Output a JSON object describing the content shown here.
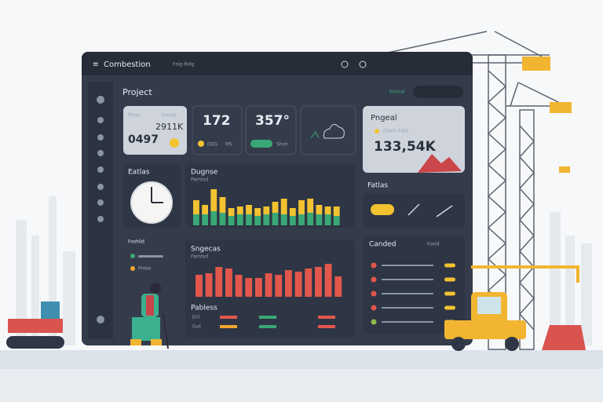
{
  "header": {
    "title": "Combestion",
    "links": "Fsig Ibdg"
  },
  "project": {
    "title": "Project",
    "status": "Eoosal"
  },
  "kpis": [
    {
      "label": "Pfoss",
      "tag": "Gwdal",
      "value": "2911K",
      "sub": "0497"
    },
    {
      "value": "172",
      "tags": [
        "DEG",
        "MS"
      ]
    },
    {
      "value": "357°",
      "tag": "Shon"
    }
  ],
  "highlight": {
    "title": "Pngeal",
    "sub": "Odels FIAS",
    "value": "133,54K"
  },
  "clock": {
    "title": "Eatlas"
  },
  "legend": [
    "Foshlid",
    "Prese"
  ],
  "chart1": {
    "title": "Dugnse",
    "subtitle": "Pamtsd",
    "series": [
      {
        "color": "#3aa776",
        "values": [
          14,
          14,
          18,
          16,
          12,
          14,
          14,
          12,
          14,
          16,
          14,
          12,
          14,
          16,
          14,
          14,
          12
        ]
      },
      {
        "color": "#f2c230",
        "values": [
          18,
          12,
          28,
          20,
          10,
          10,
          12,
          10,
          10,
          14,
          20,
          10,
          18,
          18,
          12,
          10,
          12
        ]
      }
    ]
  },
  "chart2": {
    "title": "Sngecas",
    "subtitle": "Pamtsd",
    "color": "#e2574c",
    "values": [
      28,
      30,
      38,
      36,
      28,
      24,
      24,
      30,
      28,
      34,
      32,
      36,
      38,
      42,
      26
    ],
    "footer": {
      "title": "Pabless",
      "items": [
        "Enl",
        "Gut"
      ]
    }
  },
  "fatlas": {
    "title": "Fatlas"
  },
  "list": {
    "title": "Canded",
    "tag": "Fosid",
    "rows": [
      {
        "color": "#e2574c"
      },
      {
        "color": "#e2574c"
      },
      {
        "color": "#e2574c"
      },
      {
        "color": "#e2574c"
      },
      {
        "color": "#8fb94a"
      }
    ]
  }
}
